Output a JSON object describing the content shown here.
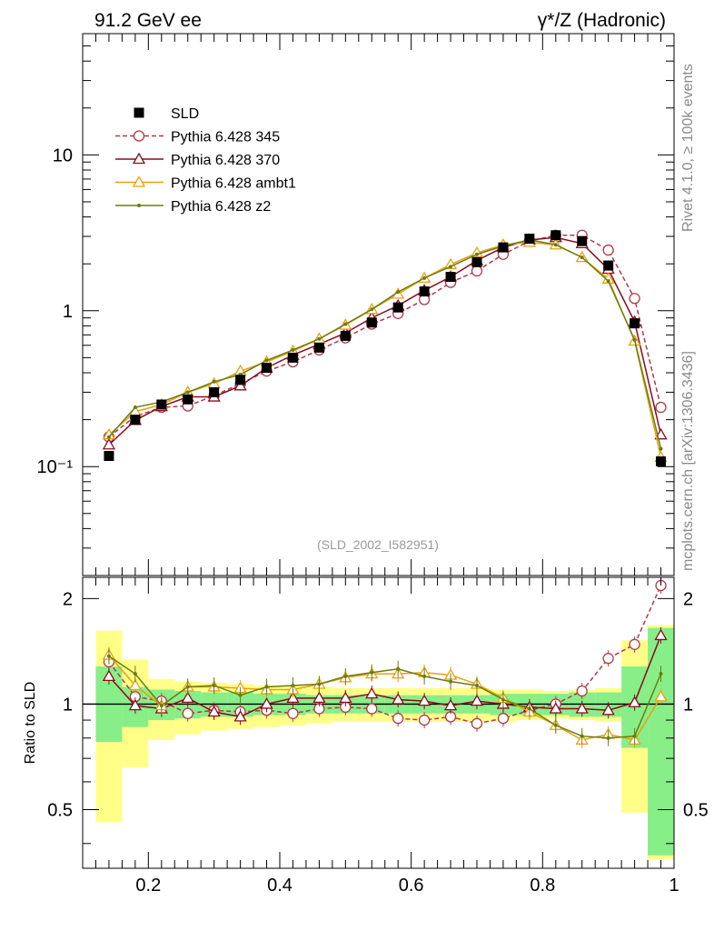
{
  "header": {
    "left": "91.2 GeV ee",
    "right": "γ*/Z (Hadronic)"
  },
  "side_labels": {
    "top": "Rivet 4.1.0, ≥ 100k events",
    "bottom": "mcplots.cern.ch [arXiv:1306.3436]"
  },
  "analysis_label": "(SLD_2002_I582951)",
  "chart_data": [
    {
      "type": "line",
      "panel": "main",
      "yscale": "log",
      "xlim": [
        0.1,
        1.0
      ],
      "ylim": [
        0.02,
        60
      ],
      "y_tick_labels": [
        "10⁻¹",
        "1",
        "10"
      ],
      "x": [
        0.14,
        0.18,
        0.22,
        0.26,
        0.3,
        0.34,
        0.38,
        0.42,
        0.46,
        0.5,
        0.54,
        0.58,
        0.62,
        0.66,
        0.7,
        0.74,
        0.78,
        0.82,
        0.86,
        0.9,
        0.94,
        0.98
      ],
      "series": [
        {
          "name": "SLD",
          "color": "#000000",
          "marker": "square",
          "values": [
            0.117,
            0.2,
            0.25,
            0.27,
            0.3,
            0.36,
            0.43,
            0.5,
            0.58,
            0.69,
            0.84,
            1.05,
            1.33,
            1.65,
            2.05,
            2.55,
            2.9,
            3.05,
            2.8,
            1.95,
            0.83,
            0.108
          ]
        },
        {
          "name": "Pythia 6.428 345",
          "color": "#b03a48",
          "marker": "circle",
          "dash": true,
          "values": [
            0.155,
            0.21,
            0.24,
            0.245,
            0.285,
            0.34,
            0.41,
            0.47,
            0.56,
            0.67,
            0.82,
            0.96,
            1.18,
            1.52,
            1.8,
            2.3,
            2.8,
            3.05,
            3.05,
            2.45,
            1.2,
            0.24
          ]
        },
        {
          "name": "Pythia 6.428 370",
          "color": "#8b0a1e",
          "marker": "triangle",
          "values": [
            0.138,
            0.198,
            0.243,
            0.28,
            0.28,
            0.33,
            0.43,
            0.52,
            0.61,
            0.72,
            0.9,
            1.08,
            1.35,
            1.65,
            2.1,
            2.55,
            2.85,
            2.95,
            2.7,
            1.85,
            0.85,
            0.16
          ]
        },
        {
          "name": "Pythia 6.428 ambt1",
          "color": "#e8a010",
          "marker": "triangle",
          "values": [
            0.16,
            0.225,
            0.25,
            0.3,
            0.34,
            0.41,
            0.47,
            0.55,
            0.66,
            0.81,
            1.02,
            1.28,
            1.62,
            1.98,
            2.35,
            2.65,
            2.75,
            2.65,
            2.2,
            1.6,
            0.64,
            0.115
          ]
        },
        {
          "name": "Pythia 6.428 z2",
          "color": "#6b7d10",
          "marker": "dot",
          "values": [
            0.155,
            0.24,
            0.26,
            0.3,
            0.35,
            0.39,
            0.48,
            0.56,
            0.66,
            0.82,
            1.02,
            1.32,
            1.62,
            1.92,
            2.3,
            2.6,
            2.85,
            2.65,
            2.2,
            1.55,
            0.65,
            0.13
          ]
        }
      ]
    },
    {
      "type": "line",
      "panel": "ratio",
      "ylabel": "Ratio to SLD",
      "xlim": [
        0.1,
        1.0
      ],
      "ylim": [
        0.34,
        2.3
      ],
      "y_tick_labels": [
        "0.5",
        "1",
        "2"
      ],
      "x_tick_labels": [
        "0.2",
        "0.4",
        "0.6",
        "0.8",
        "1"
      ],
      "x": [
        0.14,
        0.18,
        0.22,
        0.26,
        0.3,
        0.34,
        0.38,
        0.42,
        0.46,
        0.5,
        0.54,
        0.58,
        0.62,
        0.66,
        0.7,
        0.74,
        0.78,
        0.82,
        0.86,
        0.9,
        0.94,
        0.98
      ],
      "bin_edges": [
        0.12,
        0.16,
        0.2,
        0.24,
        0.28,
        0.32,
        0.36,
        0.4,
        0.44,
        0.48,
        0.52,
        0.56,
        0.6,
        0.64,
        0.68,
        0.72,
        0.76,
        0.8,
        0.84,
        0.88,
        0.92,
        0.96,
        1.0
      ],
      "band_stat": [
        [
          0.78,
          1.28
        ],
        [
          0.86,
          1.12
        ],
        [
          0.9,
          1.1
        ],
        [
          0.91,
          1.09
        ],
        [
          0.92,
          1.08
        ],
        [
          0.92,
          1.08
        ],
        [
          0.93,
          1.07
        ],
        [
          0.93,
          1.07
        ],
        [
          0.94,
          1.06
        ],
        [
          0.94,
          1.06
        ],
        [
          0.94,
          1.06
        ],
        [
          0.94,
          1.06
        ],
        [
          0.94,
          1.06
        ],
        [
          0.94,
          1.06
        ],
        [
          0.94,
          1.06
        ],
        [
          0.93,
          1.07
        ],
        [
          0.93,
          1.07
        ],
        [
          0.93,
          1.07
        ],
        [
          0.92,
          1.08
        ],
        [
          0.92,
          1.08
        ],
        [
          0.75,
          1.28
        ],
        [
          0.37,
          1.65
        ]
      ],
      "band_total": [
        [
          0.46,
          1.62
        ],
        [
          0.66,
          1.34
        ],
        [
          0.79,
          1.18
        ],
        [
          0.82,
          1.16
        ],
        [
          0.84,
          1.15
        ],
        [
          0.85,
          1.14
        ],
        [
          0.86,
          1.13
        ],
        [
          0.87,
          1.13
        ],
        [
          0.88,
          1.12
        ],
        [
          0.89,
          1.11
        ],
        [
          0.89,
          1.11
        ],
        [
          0.89,
          1.11
        ],
        [
          0.89,
          1.11
        ],
        [
          0.89,
          1.11
        ],
        [
          0.89,
          1.11
        ],
        [
          0.89,
          1.1
        ],
        [
          0.9,
          1.1
        ],
        [
          0.91,
          1.09
        ],
        [
          0.9,
          1.1
        ],
        [
          0.89,
          1.11
        ],
        [
          0.49,
          1.52
        ],
        [
          0.36,
          1.68
        ]
      ],
      "series": [
        {
          "name": "Pythia 6.428 345",
          "color": "#b03a48",
          "marker": "circle",
          "dash": true,
          "values": [
            1.32,
            1.05,
            1.02,
            0.94,
            0.96,
            0.95,
            0.96,
            0.94,
            0.97,
            0.98,
            0.97,
            0.91,
            0.9,
            0.92,
            0.88,
            0.91,
            0.96,
            1.0,
            1.09,
            1.35,
            1.48,
            2.18
          ]
        },
        {
          "name": "Pythia 6.428 370",
          "color": "#8b0a1e",
          "marker": "triangle",
          "values": [
            1.2,
            0.99,
            0.97,
            1.04,
            0.95,
            0.92,
            1.0,
            1.04,
            1.04,
            1.04,
            1.07,
            1.03,
            1.02,
            0.99,
            1.02,
            1.0,
            0.98,
            0.97,
            0.97,
            0.96,
            1.01,
            1.57
          ]
        },
        {
          "name": "Pythia 6.428 ambt1",
          "color": "#e8a010",
          "marker": "triangle",
          "values": [
            1.38,
            1.13,
            0.99,
            1.12,
            1.12,
            1.11,
            1.1,
            1.1,
            1.14,
            1.19,
            1.22,
            1.22,
            1.23,
            1.21,
            1.14,
            1.04,
            0.95,
            0.87,
            0.79,
            0.82,
            0.79,
            1.05
          ]
        },
        {
          "name": "Pythia 6.428 z2",
          "color": "#6b7d10",
          "marker": "dot",
          "values": [
            1.37,
            1.22,
            0.99,
            1.12,
            1.13,
            1.06,
            1.12,
            1.13,
            1.14,
            1.2,
            1.23,
            1.26,
            1.2,
            1.16,
            1.13,
            1.03,
            0.97,
            0.87,
            0.81,
            0.8,
            0.81,
            1.22
          ]
        }
      ]
    }
  ]
}
